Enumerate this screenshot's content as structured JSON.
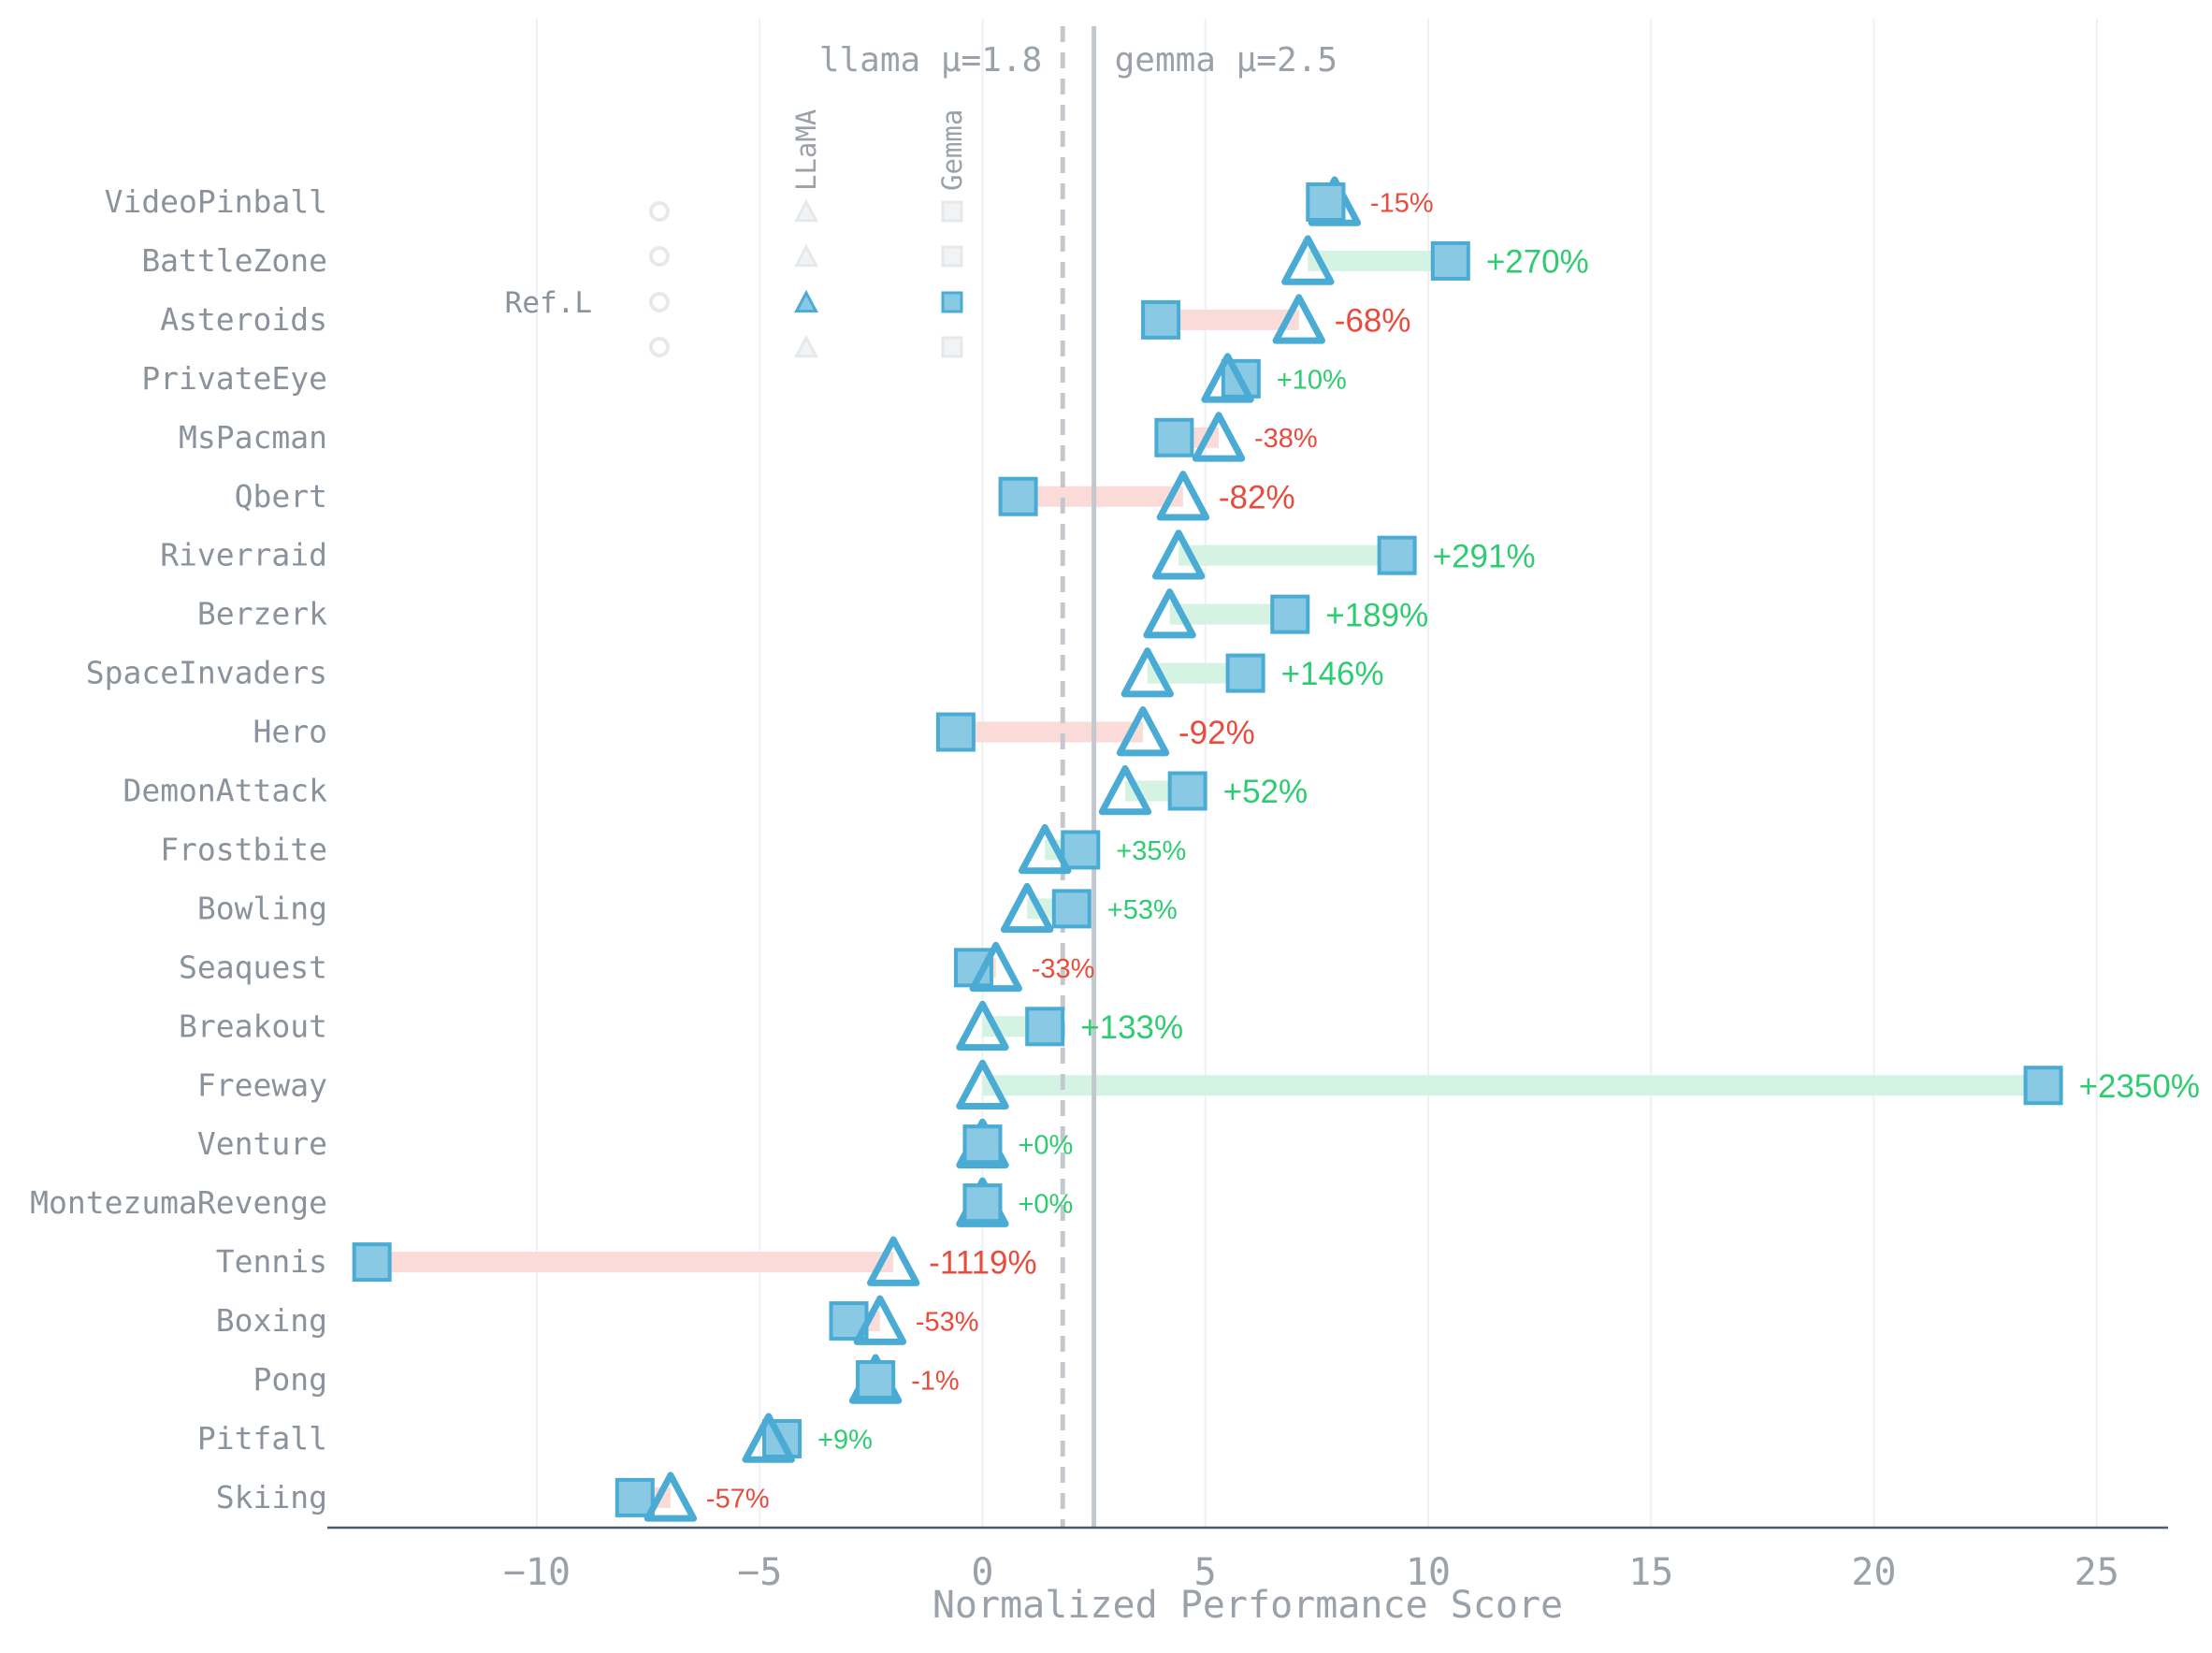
{
  "colors": {
    "marker_fill": "#89c9e3",
    "marker_stroke": "#4aabd4",
    "positive": "#2ecc71",
    "negative": "#e74c3c",
    "positive_band": "#d4f3e2",
    "negative_band": "#fadbd8",
    "mean_line": "#c3c8cf"
  },
  "chart_data": {
    "type": "dumbbell",
    "xlabel": "Normalized Performance Score",
    "xlim": [
      -14.7,
      26.6
    ],
    "xticks": [
      -10,
      -5,
      0,
      5,
      10,
      15,
      20,
      25
    ],
    "xtick_labels": [
      "−10",
      "−5",
      "0",
      "5",
      "10",
      "15",
      "20",
      "25"
    ],
    "grid": "vertical",
    "series": [
      {
        "name": "LLaMA",
        "marker": "triangle"
      },
      {
        "name": "Gemma",
        "marker": "square"
      }
    ],
    "means": [
      {
        "label": "llama μ=1.8",
        "value": 1.8,
        "style": "dashed"
      },
      {
        "label": "gemma μ=2.5",
        "value": 2.5,
        "style": "solid"
      }
    ],
    "legend": {
      "columns": [
        "LLaMA",
        "Gemma"
      ],
      "row_label": "Ref.L",
      "placement": "top-left"
    },
    "rows": [
      {
        "game": "VideoPinball",
        "llama": 7.9,
        "gemma": 7.7,
        "change": "-15%"
      },
      {
        "game": "BattleZone",
        "llama": 7.3,
        "gemma": 10.5,
        "change": "+270%"
      },
      {
        "game": "Asteroids",
        "llama": 7.1,
        "gemma": 4.0,
        "change": "-68%"
      },
      {
        "game": "PrivateEye",
        "llama": 5.5,
        "gemma": 5.8,
        "change": "+10%"
      },
      {
        "game": "MsPacman",
        "llama": 5.3,
        "gemma": 4.3,
        "change": "-38%"
      },
      {
        "game": "Qbert",
        "llama": 4.5,
        "gemma": 0.8,
        "change": "-82%"
      },
      {
        "game": "Riverraid",
        "llama": 4.4,
        "gemma": 9.3,
        "change": "+291%"
      },
      {
        "game": "Berzerk",
        "llama": 4.2,
        "gemma": 6.9,
        "change": "+189%"
      },
      {
        "game": "SpaceInvaders",
        "llama": 3.7,
        "gemma": 5.9,
        "change": "+146%"
      },
      {
        "game": "Hero",
        "llama": 3.6,
        "gemma": -0.6,
        "change": "-92%"
      },
      {
        "game": "DemonAttack",
        "llama": 3.2,
        "gemma": 4.6,
        "change": "+52%"
      },
      {
        "game": "Frostbite",
        "llama": 1.4,
        "gemma": 2.2,
        "change": "+35%"
      },
      {
        "game": "Bowling",
        "llama": 1.0,
        "gemma": 2.0,
        "change": "+53%"
      },
      {
        "game": "Seaquest",
        "llama": 0.3,
        "gemma": -0.2,
        "change": "-33%"
      },
      {
        "game": "Breakout",
        "llama": 0.0,
        "gemma": 1.4,
        "change": "+133%"
      },
      {
        "game": "Freeway",
        "llama": 0.0,
        "gemma": 23.8,
        "change": "+2350%"
      },
      {
        "game": "Venture",
        "llama": 0.0,
        "gemma": 0.0,
        "change": "+0%"
      },
      {
        "game": "MontezumaRevenge",
        "llama": 0.0,
        "gemma": 0.0,
        "change": "+0%"
      },
      {
        "game": "Tennis",
        "llama": -2.0,
        "gemma": -13.7,
        "change": "-1119%"
      },
      {
        "game": "Boxing",
        "llama": -2.3,
        "gemma": -3.0,
        "change": "-53%"
      },
      {
        "game": "Pong",
        "llama": -2.4,
        "gemma": -2.4,
        "change": "-1%"
      },
      {
        "game": "Pitfall",
        "llama": -4.8,
        "gemma": -4.5,
        "change": "+9%"
      },
      {
        "game": "Skiing",
        "llama": -7.0,
        "gemma": -7.8,
        "change": "-57%"
      }
    ]
  }
}
